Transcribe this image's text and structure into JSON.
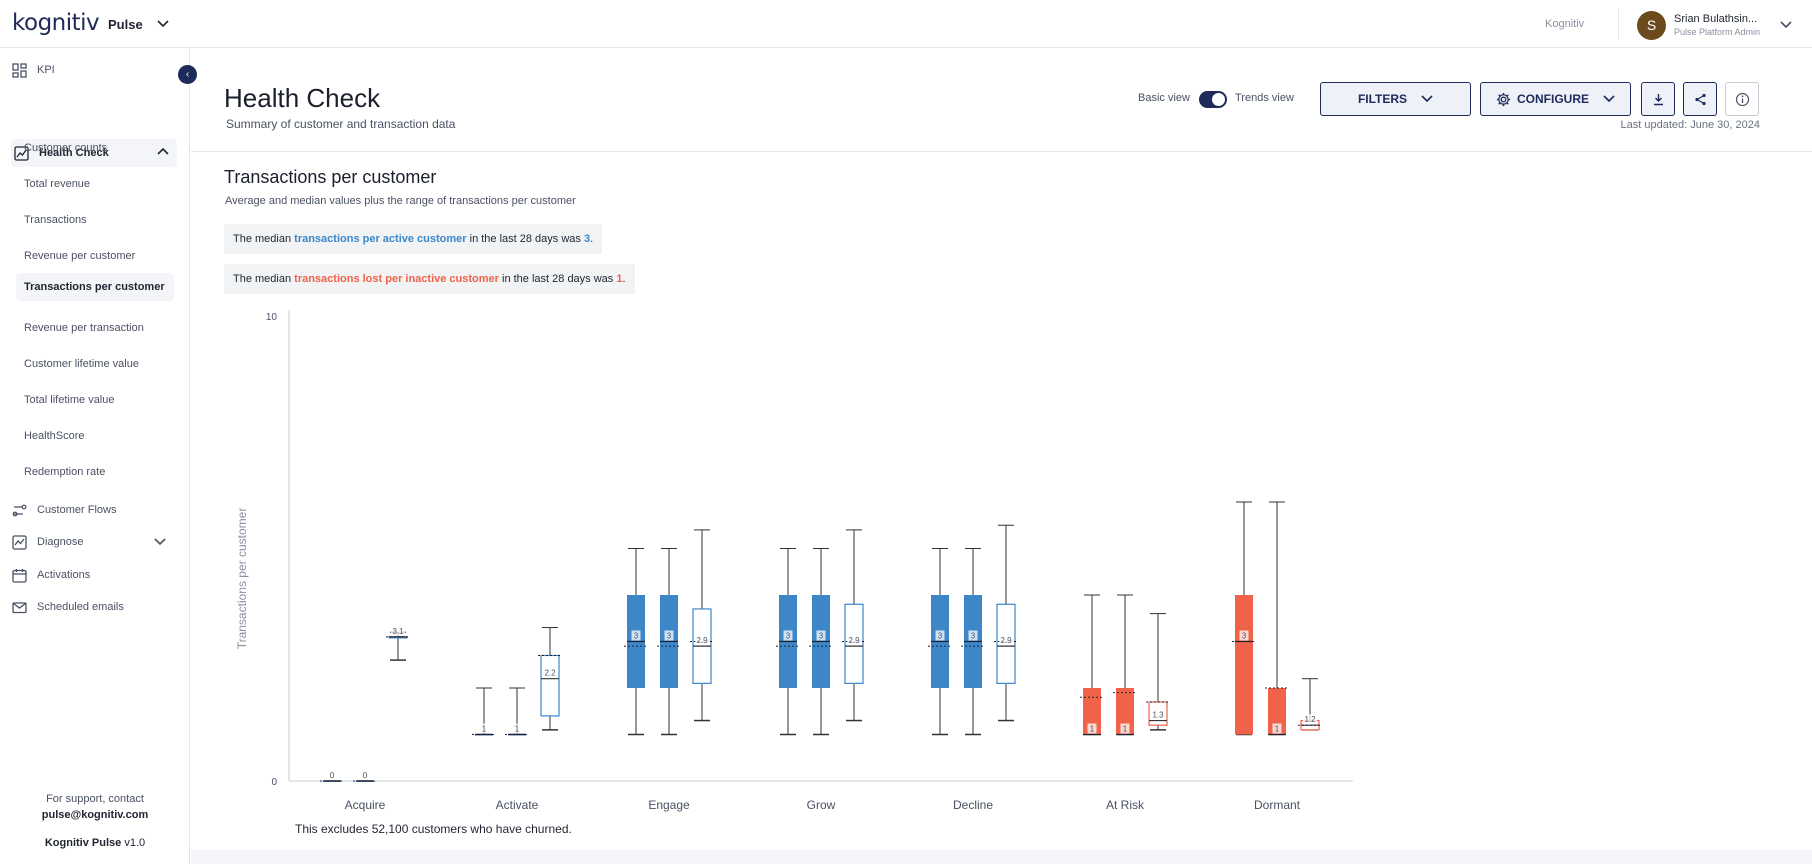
{
  "topbar": {
    "logo": "kognitiv",
    "app_name": "Pulse",
    "org": "Kognitiv",
    "user_initial": "S",
    "user_name": "Srian Bulathsin...",
    "user_role": "Pulse Platform Admin"
  },
  "sidebar": {
    "kpi": "KPI",
    "health_check": "Health Check",
    "sub_items": [
      "Customer counts",
      "Total revenue",
      "Transactions",
      "Revenue per customer",
      "Transactions per customer",
      "Revenue per transaction",
      "Customer lifetime value",
      "Total lifetime value",
      "HealthScore",
      "Redemption rate"
    ],
    "customer_flows": "Customer Flows",
    "diagnose": "Diagnose",
    "activations": "Activations",
    "scheduled_emails": "Scheduled emails",
    "support_line": "For support, contact",
    "support_email": "pulse@kognitiv.com",
    "product": "Kognitiv Pulse",
    "version": "v1.0"
  },
  "header": {
    "title": "Health Check",
    "subtitle": "Summary of customer and transaction data",
    "basic_view": "Basic view",
    "trends_view": "Trends view",
    "trends_enabled": true,
    "filters": "FILTERS",
    "configure": "CONFIGURE",
    "last_updated": "Last updated: June 30, 2024"
  },
  "section": {
    "title": "Transactions per customer",
    "subtitle": "Average and median values plus the range of transactions per customer",
    "callout1": {
      "pre": "The median ",
      "metric": "transactions per active customer",
      "mid": " in the last 28 days was ",
      "value": "3",
      "post": "."
    },
    "callout2": {
      "pre": "The median ",
      "metric": "transactions lost per inactive customer",
      "mid": " in the last 28 days was ",
      "value": "1",
      "post": "."
    },
    "footer_note": "This excludes 52,100 customers who have churned."
  },
  "colors": {
    "navy": "#1e2a5a",
    "blue": "#3d87c8",
    "orange": "#f0634a",
    "whisker": "#333333"
  },
  "chart_data": {
    "type": "boxplot",
    "ylabel": "Transactions per customer",
    "ylim": [
      0,
      10
    ],
    "ytick_labels": [
      "0",
      "10"
    ],
    "categories": [
      "Acquire",
      "Activate",
      "Engage",
      "Grow",
      "Decline",
      "At Risk",
      "Dormant"
    ],
    "boxes": [
      {
        "category": "Acquire",
        "style": "blue-solid",
        "min": 0,
        "q1": 0,
        "median": 0,
        "q3": 0,
        "max": 0,
        "mean": 0,
        "label": "0"
      },
      {
        "category": "Acquire",
        "style": "blue-solid",
        "min": 0,
        "q1": 0,
        "median": 0,
        "q3": 0,
        "max": 0,
        "mean": 0,
        "label": "0"
      },
      {
        "category": "Acquire",
        "style": "blue-outline",
        "min": 2.6,
        "q1": 3.1,
        "median": 3.1,
        "q3": 3.1,
        "max": 3.2,
        "mean": 3.1,
        "label": "3.1"
      },
      {
        "category": "Activate",
        "style": "blue-solid",
        "min": 1,
        "q1": 1,
        "median": 1,
        "q3": 1,
        "max": 2,
        "mean": 1,
        "label": "1"
      },
      {
        "category": "Activate",
        "style": "blue-solid",
        "min": 1,
        "q1": 1,
        "median": 1,
        "q3": 1,
        "max": 2,
        "mean": 1,
        "label": "1"
      },
      {
        "category": "Activate",
        "style": "blue-outline",
        "min": 1.1,
        "q1": 1.4,
        "median": 2.2,
        "q3": 2.7,
        "max": 3.3,
        "mean": 2.7,
        "label": "2.2"
      },
      {
        "category": "Engage",
        "style": "blue-solid",
        "min": 1,
        "q1": 2,
        "median": 3,
        "q3": 4,
        "max": 5,
        "mean": 2.9,
        "label": "3"
      },
      {
        "category": "Engage",
        "style": "blue-solid",
        "min": 1,
        "q1": 2,
        "median": 3,
        "q3": 4,
        "max": 5,
        "mean": 2.9,
        "label": "3"
      },
      {
        "category": "Engage",
        "style": "blue-outline",
        "min": 1.3,
        "q1": 2.1,
        "median": 2.9,
        "q3": 3.7,
        "max": 5.4,
        "mean": 3.0,
        "label": "2.9"
      },
      {
        "category": "Grow",
        "style": "blue-solid",
        "min": 1,
        "q1": 2,
        "median": 3,
        "q3": 4,
        "max": 5,
        "mean": 2.9,
        "label": "3"
      },
      {
        "category": "Grow",
        "style": "blue-solid",
        "min": 1,
        "q1": 2,
        "median": 3,
        "q3": 4,
        "max": 5,
        "mean": 2.9,
        "label": "3"
      },
      {
        "category": "Grow",
        "style": "blue-outline",
        "min": 1.3,
        "q1": 2.1,
        "median": 2.9,
        "q3": 3.8,
        "max": 5.4,
        "mean": 3.0,
        "label": "2.9"
      },
      {
        "category": "Decline",
        "style": "blue-solid",
        "min": 1,
        "q1": 2,
        "median": 3,
        "q3": 4,
        "max": 5,
        "mean": 2.9,
        "label": "3"
      },
      {
        "category": "Decline",
        "style": "blue-solid",
        "min": 1,
        "q1": 2,
        "median": 3,
        "q3": 4,
        "max": 5,
        "mean": 2.9,
        "label": "3"
      },
      {
        "category": "Decline",
        "style": "blue-outline",
        "min": 1.3,
        "q1": 2.1,
        "median": 2.9,
        "q3": 3.8,
        "max": 5.5,
        "mean": 3.0,
        "label": "2.9"
      },
      {
        "category": "At Risk",
        "style": "orange-solid",
        "min": 1,
        "q1": 1,
        "median": 1,
        "q3": 2,
        "max": 4,
        "mean": 1.8,
        "label": "1"
      },
      {
        "category": "At Risk",
        "style": "orange-solid",
        "min": 1,
        "q1": 1,
        "median": 1,
        "q3": 2,
        "max": 4,
        "mean": 1.9,
        "label": "1"
      },
      {
        "category": "At Risk",
        "style": "orange-outline",
        "min": 1.1,
        "q1": 1.2,
        "median": 1.3,
        "q3": 1.7,
        "max": 3.6,
        "mean": 1.7,
        "label": "1.3"
      },
      {
        "category": "Dormant",
        "style": "orange-solid",
        "min": 1,
        "q1": 1,
        "median": 3,
        "q3": 4,
        "max": 6,
        "mean": 3.0,
        "label": "3"
      },
      {
        "category": "Dormant",
        "style": "orange-solid",
        "min": 1,
        "q1": 1,
        "median": 1,
        "q3": 2,
        "max": 6,
        "mean": 2.0,
        "label": "1"
      },
      {
        "category": "Dormant",
        "style": "orange-outline",
        "min": 1.1,
        "q1": 1.1,
        "median": 1.2,
        "q3": 1.3,
        "max": 2.2,
        "mean": 1.2,
        "label": "1.2"
      }
    ]
  }
}
